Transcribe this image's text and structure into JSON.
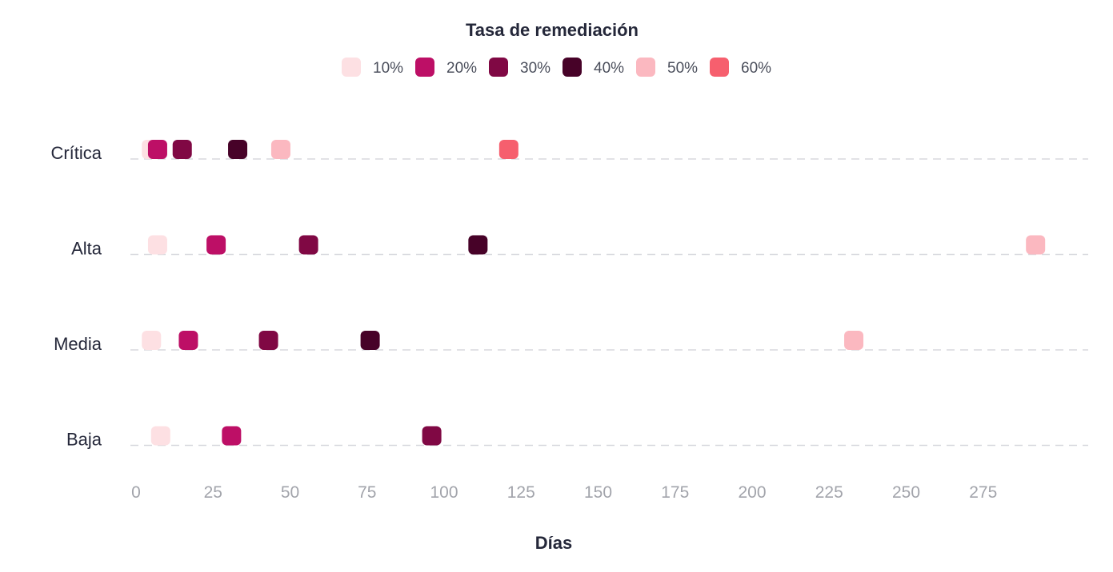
{
  "chart_data": {
    "type": "scatter",
    "title": "Tasa de remediación",
    "xlabel": "Días",
    "ylabel": "",
    "categories": [
      "Crítica",
      "Alta",
      "Media",
      "Baja"
    ],
    "x_ticks": [
      0,
      25,
      50,
      75,
      100,
      125,
      150,
      175,
      200,
      225,
      250,
      275
    ],
    "xlim": [
      0,
      298
    ],
    "grid": true,
    "legend_position": "top-center",
    "series": [
      {
        "name": "10%",
        "color": "#fde0e3",
        "values": [
          5,
          7,
          5,
          8
        ]
      },
      {
        "name": "20%",
        "color": "#bd0f66",
        "values": [
          7,
          26,
          17,
          31
        ]
      },
      {
        "name": "30%",
        "color": "#800844",
        "values": [
          15,
          56,
          43,
          96
        ]
      },
      {
        "name": "40%",
        "color": "#470228",
        "values": [
          33,
          111,
          76,
          null
        ]
      },
      {
        "name": "50%",
        "color": "#fbb8c0",
        "values": [
          47,
          292,
          233,
          null
        ]
      },
      {
        "name": "60%",
        "color": "#f65f6e",
        "values": [
          121,
          null,
          null,
          null
        ]
      }
    ]
  }
}
